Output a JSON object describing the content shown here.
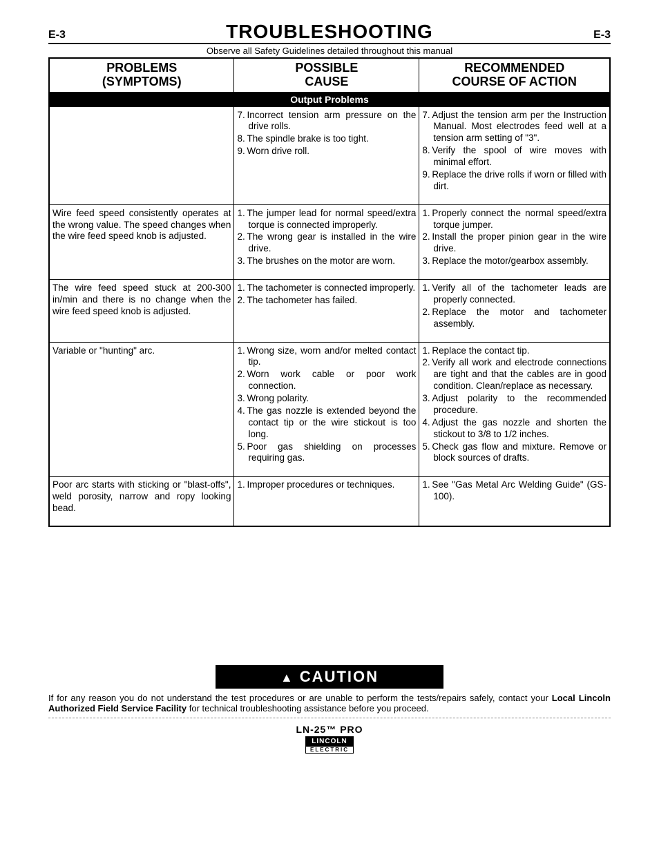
{
  "page_code": "E-3",
  "page_title": "TROUBLESHOOTING",
  "safety_note": "Observe all Safety Guidelines detailed throughout this manual",
  "headers": {
    "col1_l1": "PROBLEMS",
    "col1_l2": "(SYMPTOMS)",
    "col2_l1": "POSSIBLE",
    "col2_l2": "CAUSE",
    "col3_l1": "RECOMMENDED",
    "col3_l2": "COURSE OF ACTION"
  },
  "section_title": "Output Problems",
  "rows": [
    {
      "symptom": "",
      "causes": [
        {
          "n": "7.",
          "t": "Incorrect tension arm pressure on the drive rolls."
        },
        {
          "n": "8.",
          "t": "The spindle brake is too tight."
        },
        {
          "n": "9.",
          "t": "Worn drive roll."
        }
      ],
      "actions": [
        {
          "n": "7.",
          "t": "Adjust the tension arm per the Instruction Manual. Most electrodes feed well at a tension arm setting of \"3\"."
        },
        {
          "n": "8.",
          "t": "Verify the spool of wire moves with minimal effort."
        },
        {
          "n": "9.",
          "t": "Replace the drive rolls if worn or filled with dirt."
        }
      ]
    },
    {
      "symptom": "Wire feed speed consistently operates at the wrong value. The speed changes when the wire feed speed knob is adjusted.",
      "causes": [
        {
          "n": "1.",
          "t": "The jumper lead for normal speed/extra torque is connected improperly."
        },
        {
          "n": "2.",
          "t": "The wrong gear is installed in the wire drive."
        },
        {
          "n": "3.",
          "t": "The brushes on the motor are worn."
        }
      ],
      "actions": [
        {
          "n": "1.",
          "t": "Properly connect the normal speed/extra torque jumper."
        },
        {
          "n": "2.",
          "t": "Install the proper pinion gear in the wire drive."
        },
        {
          "n": "3.",
          "t": "Replace the motor/gearbox assembly."
        }
      ]
    },
    {
      "symptom": "The wire feed speed stuck at 200-300 in/min and there is no change when the wire feed speed knob is adjusted.",
      "causes": [
        {
          "n": "1.",
          "t": "The tachometer is connected improperly."
        },
        {
          "n": "2.",
          "t": "The tachometer has failed."
        }
      ],
      "actions": [
        {
          "n": "1.",
          "t": "Verify all of the tachometer leads are properly connected."
        },
        {
          "n": "2.",
          "t": "Replace the motor and tachometer assembly."
        }
      ]
    },
    {
      "symptom": "Variable or \"hunting\" arc.",
      "causes": [
        {
          "n": "1.",
          "t": "Wrong size, worn and/or melted contact tip."
        },
        {
          "n": "2.",
          "t": "Worn work cable or poor work connection."
        },
        {
          "n": "3.",
          "t": "Wrong polarity."
        },
        {
          "n": "4.",
          "t": "The gas nozzle is extended beyond the contact tip or the wire stickout is too long."
        },
        {
          "n": "5.",
          "t": "Poor gas shielding on processes requiring gas."
        }
      ],
      "actions": [
        {
          "n": "1.",
          "t": "Replace the contact tip."
        },
        {
          "n": "2.",
          "t": "Verify all work and electrode connections are tight and that the cables are in good condition. Clean/replace as necessary."
        },
        {
          "n": "3.",
          "t": "Adjust polarity to the recommended procedure."
        },
        {
          "n": "4.",
          "t": "Adjust the gas nozzle and shorten the stickout to 3/8 to 1/2 inches."
        },
        {
          "n": "5.",
          "t": "Check gas flow and mixture. Remove or block sources of drafts."
        }
      ]
    },
    {
      "symptom": "Poor arc starts with sticking or \"blast-offs\", weld porosity, narrow and ropy looking bead.",
      "causes": [
        {
          "n": "1.",
          "t": "Improper procedures or techniques."
        }
      ],
      "actions": [
        {
          "n": "1.",
          "t": "See \"Gas Metal Arc Welding Guide\" (GS-100)."
        }
      ]
    }
  ],
  "caution_label": "CAUTION",
  "caution_text_pre": "If for any reason you do not understand the test procedures or are unable to perform the tests/repairs safely, contact your ",
  "caution_text_bold": "Local Lincoln Authorized Field Service Facility",
  "caution_text_post": " for technical troubleshooting assistance before you proceed.",
  "product_name": "LN-25™ PRO",
  "logo_top": "LINCOLN",
  "logo_bot": "ELECTRIC"
}
